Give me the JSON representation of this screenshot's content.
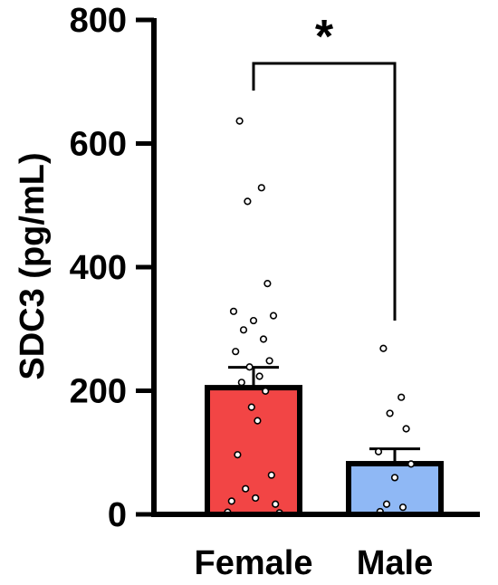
{
  "chart_data": {
    "type": "bar",
    "ylabel": "SDC3 (pg/mL)",
    "ylim": [
      0,
      800
    ],
    "yticks": [
      "0",
      "200",
      "400",
      "600",
      "800"
    ],
    "categories": [
      "Female",
      "Male"
    ],
    "values": [
      205,
      82
    ],
    "errors": [
      33,
      24
    ],
    "colors": [
      "#f24545",
      "#8fb8f5"
    ],
    "points": [
      [
        635,
        527,
        505,
        372,
        327,
        320,
        312,
        297,
        282,
        262,
        247,
        237,
        222,
        212,
        198,
        172,
        150,
        95,
        62,
        40,
        25,
        20,
        15,
        2,
        1
      ],
      [
        267,
        188,
        162,
        137,
        100,
        80,
        58,
        15,
        10,
        3
      ]
    ],
    "significance": {
      "label": "*",
      "between": [
        "Female",
        "Male"
      ]
    }
  }
}
